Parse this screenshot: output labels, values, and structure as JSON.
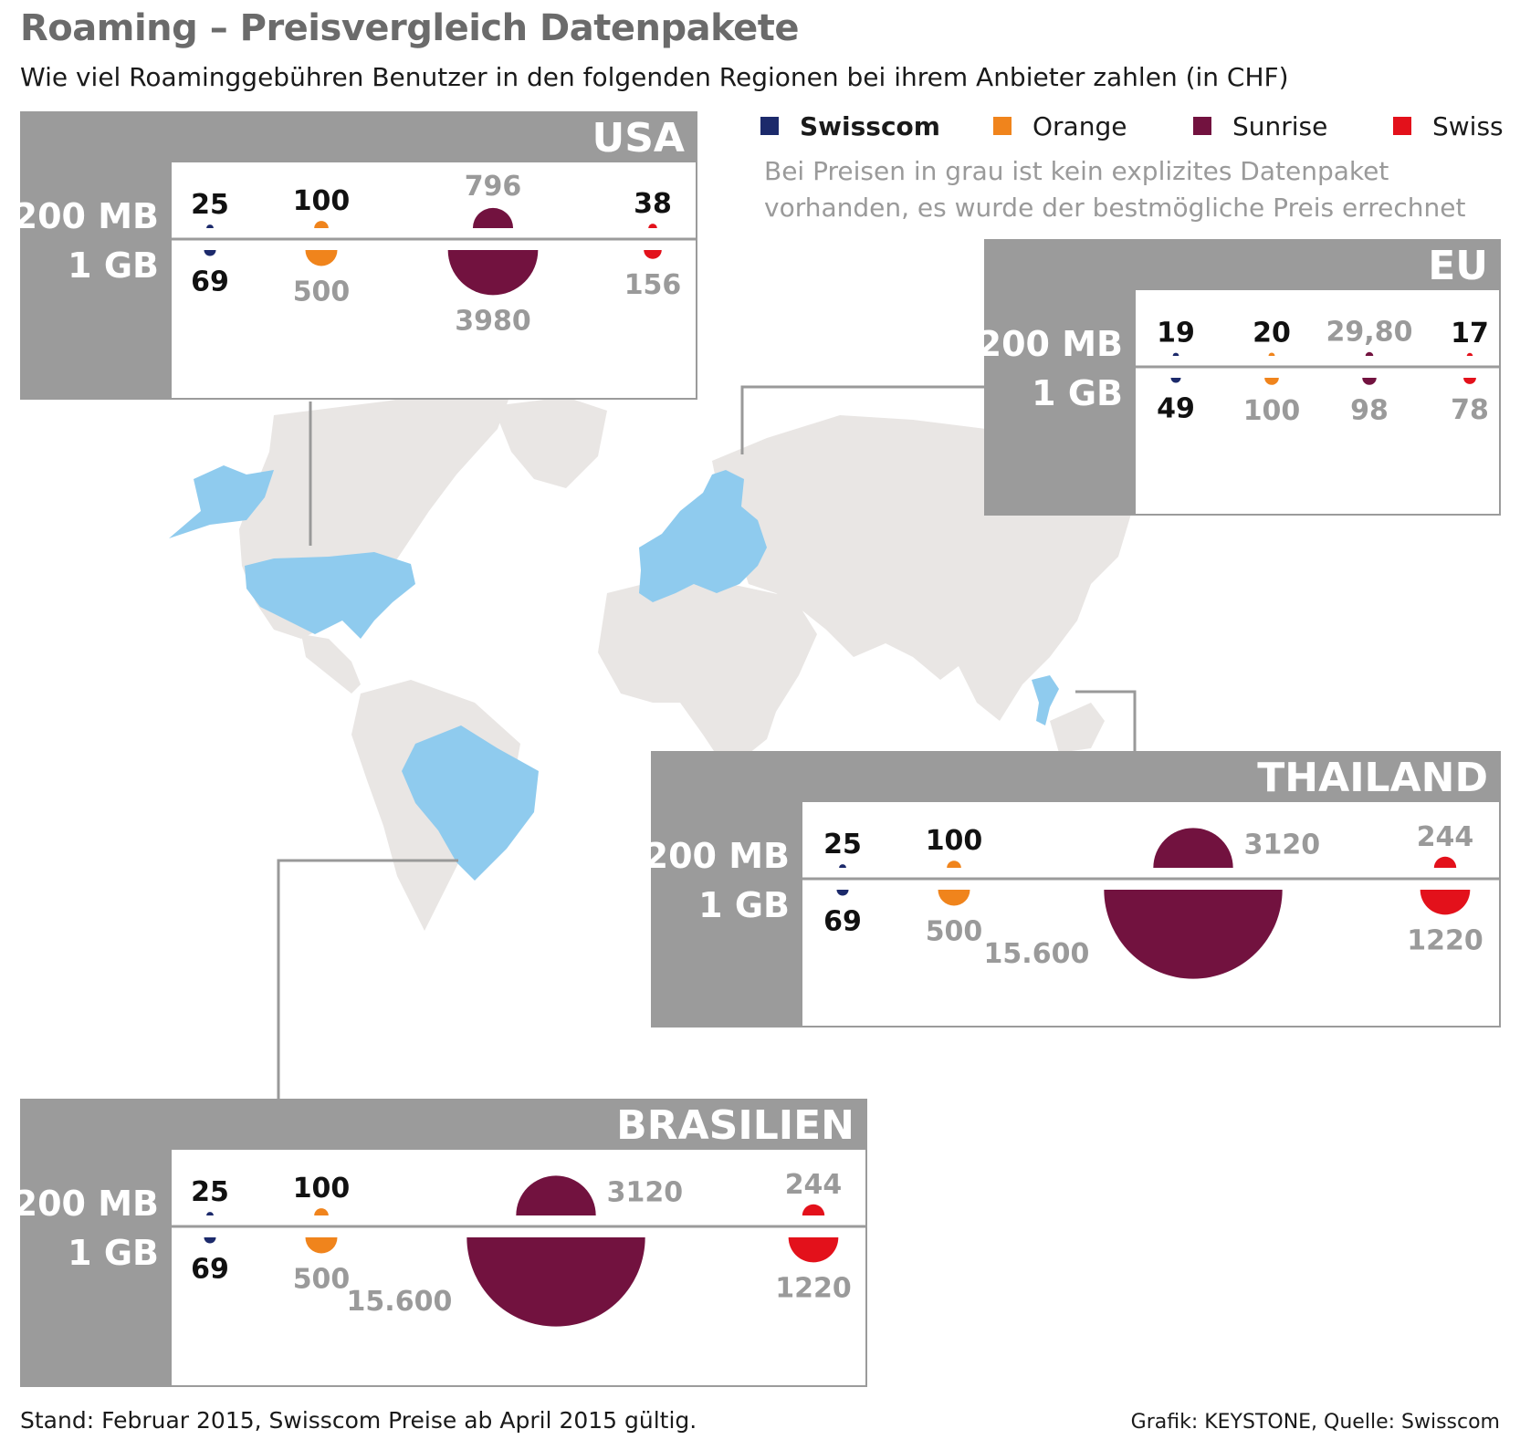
{
  "title": "Roaming – Preisvergleich Datenpakete",
  "subtitle": "Wie viel Roaminggebühren Benutzer in den folgenden Regionen bei ihrem Anbieter zahlen (in CHF)",
  "note": [
    "Bei Preisen in grau ist kein explizites Datenpaket",
    "vorhanden, es wurde der bestmögliche Preis errechnet"
  ],
  "footer_left": "Stand: Februar 2015, Swisscom Preise ab April 2015 gültig.",
  "footer_right": "Grafik: KEYSTONE, Quelle: Swisscom",
  "colors": {
    "panel_gray": "#9b9b9b",
    "map_land": "#e9e6e4",
    "map_highlight": "#8fcbee",
    "value_black": "#111111",
    "value_gray": "#9a9a9a"
  },
  "row_labels": [
    "200 MB",
    "1 GB"
  ],
  "chart_data": {
    "type": "semicircle-area",
    "unit": "CHF",
    "providers": [
      {
        "name": "Swisscom",
        "color": "#1c2a6b"
      },
      {
        "name": "Orange",
        "color": "#f0841c"
      },
      {
        "name": "Sunrise",
        "color": "#72123f"
      },
      {
        "name": "Swiss",
        "color": "#e3111b"
      }
    ],
    "plans": [
      "200 MB",
      "1 GB"
    ],
    "regions": [
      {
        "name": "USA",
        "prices": {
          "200 MB": [
            {
              "label": "25",
              "value": 25,
              "calculated": false
            },
            {
              "label": "100",
              "value": 100,
              "calculated": false
            },
            {
              "label": "796",
              "value": 796,
              "calculated": true
            },
            {
              "label": "38",
              "value": 38,
              "calculated": false
            }
          ],
          "1 GB": [
            {
              "label": "69",
              "value": 69,
              "calculated": false
            },
            {
              "label": "500",
              "value": 500,
              "calculated": true
            },
            {
              "label": "3980",
              "value": 3980,
              "calculated": true
            },
            {
              "label": "156",
              "value": 156,
              "calculated": true
            }
          ]
        }
      },
      {
        "name": "EU",
        "prices": {
          "200 MB": [
            {
              "label": "19",
              "value": 19,
              "calculated": false
            },
            {
              "label": "20",
              "value": 20,
              "calculated": false
            },
            {
              "label": "29,80",
              "value": 29.8,
              "calculated": true
            },
            {
              "label": "17",
              "value": 17,
              "calculated": false
            }
          ],
          "1 GB": [
            {
              "label": "49",
              "value": 49,
              "calculated": false
            },
            {
              "label": "100",
              "value": 100,
              "calculated": true
            },
            {
              "label": "98",
              "value": 98,
              "calculated": true
            },
            {
              "label": "78",
              "value": 78,
              "calculated": true
            }
          ]
        }
      },
      {
        "name": "THAILAND",
        "prices": {
          "200 MB": [
            {
              "label": "25",
              "value": 25,
              "calculated": false
            },
            {
              "label": "100",
              "value": 100,
              "calculated": false
            },
            {
              "label": "3120",
              "value": 3120,
              "calculated": true
            },
            {
              "label": "244",
              "value": 244,
              "calculated": true
            }
          ],
          "1 GB": [
            {
              "label": "69",
              "value": 69,
              "calculated": false
            },
            {
              "label": "500",
              "value": 500,
              "calculated": true
            },
            {
              "label": "15.600",
              "value": 15600,
              "calculated": true
            },
            {
              "label": "1220",
              "value": 1220,
              "calculated": true
            }
          ]
        }
      },
      {
        "name": "BRASILIEN",
        "prices": {
          "200 MB": [
            {
              "label": "25",
              "value": 25,
              "calculated": false
            },
            {
              "label": "100",
              "value": 100,
              "calculated": false
            },
            {
              "label": "3120",
              "value": 3120,
              "calculated": true
            },
            {
              "label": "244",
              "value": 244,
              "calculated": true
            }
          ],
          "1 GB": [
            {
              "label": "69",
              "value": 69,
              "calculated": false
            },
            {
              "label": "500",
              "value": 500,
              "calculated": true
            },
            {
              "label": "15.600",
              "value": 15600,
              "calculated": true
            },
            {
              "label": "1220",
              "value": 1220,
              "calculated": true
            }
          ]
        }
      }
    ]
  }
}
